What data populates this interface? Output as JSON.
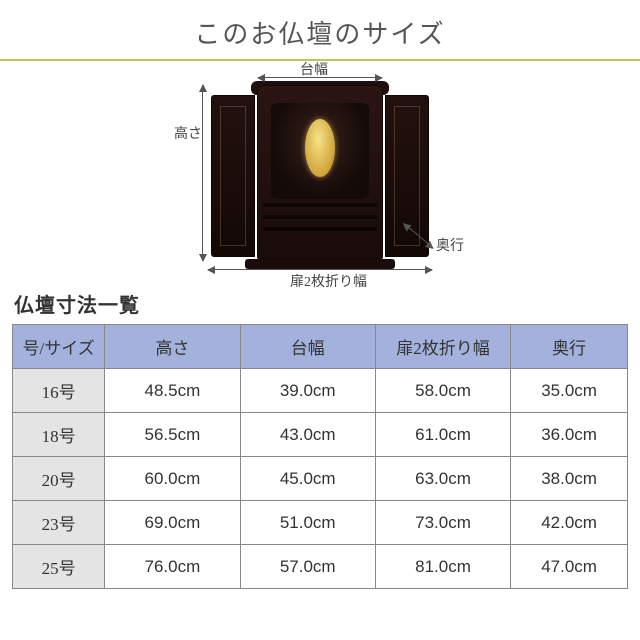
{
  "title": "このお仏壇のサイズ",
  "ruleColor": "#b7c95a",
  "diagram": {
    "labels": {
      "daiWidth": "台幅",
      "height": "高さ",
      "depth": "奥行",
      "doorWidth": "扉2枚折り幅"
    }
  },
  "tableTitle": "仏壇寸法一覧",
  "table": {
    "headerBg": "#a3b2dc",
    "sizeColBg": "#e4e4e4",
    "columns": [
      "号/サイズ",
      "高さ",
      "台幅",
      "扉2枚折り幅",
      "奥行"
    ],
    "rows": [
      [
        "16号",
        "48.5cm",
        "39.0cm",
        "58.0cm",
        "35.0cm"
      ],
      [
        "18号",
        "56.5cm",
        "43.0cm",
        "61.0cm",
        "36.0cm"
      ],
      [
        "20号",
        "60.0cm",
        "45.0cm",
        "63.0cm",
        "38.0cm"
      ],
      [
        "23号",
        "69.0cm",
        "51.0cm",
        "73.0cm",
        "42.0cm"
      ],
      [
        "25号",
        "76.0cm",
        "57.0cm",
        "81.0cm",
        "47.0cm"
      ]
    ]
  }
}
